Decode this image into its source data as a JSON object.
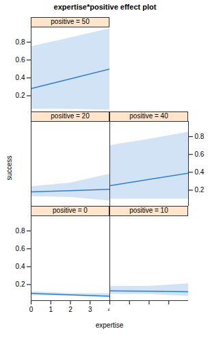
{
  "chart_data": {
    "type": "line",
    "title": "expertise*positive effect plot",
    "x_label": "expertise",
    "y_label": "success",
    "xlim": [
      0,
      4
    ],
    "xticks": [
      0,
      1,
      2,
      3,
      4
    ],
    "ylim": [
      0.02,
      0.97
    ],
    "yticks": [
      0.2,
      0.4,
      0.6,
      0.8
    ],
    "color": "#2f7fd0",
    "panels": [
      {
        "label": "positive = 0",
        "x": [
          0,
          2,
          4
        ],
        "values": [
          0.1,
          0.085,
          0.07
        ],
        "lower": [
          0.08,
          0.07,
          0.05
        ],
        "upper": [
          0.12,
          0.1,
          0.1
        ]
      },
      {
        "label": "positive = 10",
        "x": [
          0,
          2,
          4
        ],
        "values": [
          0.13,
          0.125,
          0.12
        ],
        "lower": [
          0.09,
          0.09,
          0.07
        ],
        "upper": [
          0.18,
          0.18,
          0.21
        ]
      },
      {
        "label": "positive = 20",
        "x": [
          0,
          2,
          4
        ],
        "values": [
          0.18,
          0.195,
          0.21
        ],
        "lower": [
          0.13,
          0.12,
          0.08
        ],
        "upper": [
          0.24,
          0.28,
          0.38
        ]
      },
      {
        "label": "positive = 40",
        "x": [
          0,
          2,
          4
        ],
        "values": [
          0.25,
          0.32,
          0.39
        ],
        "lower": [
          0.1,
          0.1,
          0.1
        ],
        "upper": [
          0.7,
          0.77,
          0.85
        ]
      },
      {
        "label": "positive = 50",
        "x": [
          0,
          2,
          4
        ],
        "values": [
          0.28,
          0.39,
          0.5
        ],
        "lower": [
          0.05,
          0.05,
          0.04
        ],
        "upper": [
          0.75,
          0.85,
          0.95
        ]
      }
    ]
  }
}
